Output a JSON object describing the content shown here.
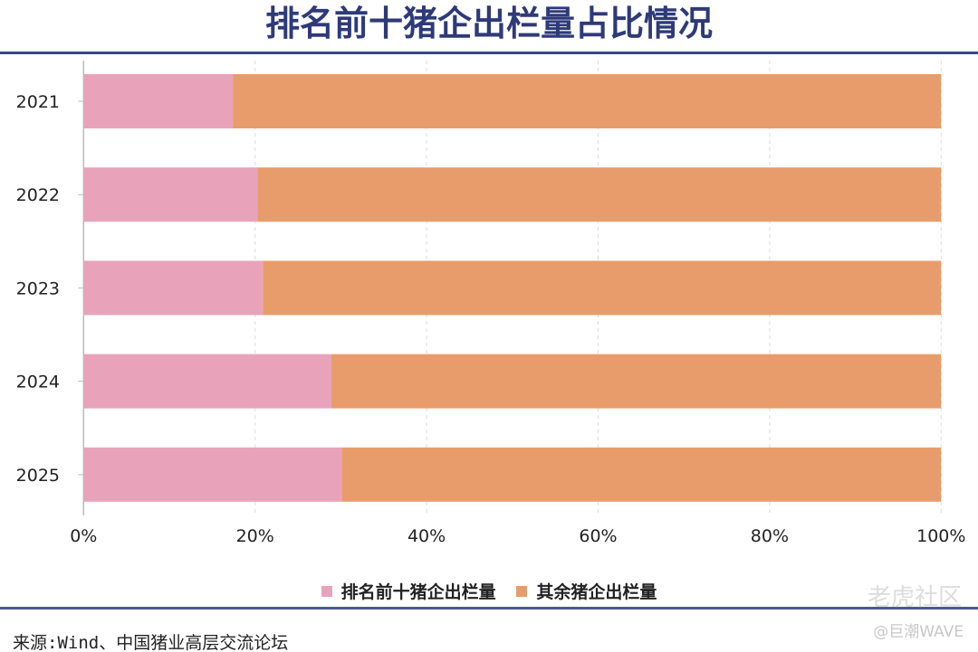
{
  "chart_data": {
    "type": "bar",
    "orientation": "horizontal",
    "stacked": true,
    "title": "排名前十猪企出栏量占比情况",
    "categories": [
      "2021",
      "2022",
      "2023",
      "2024",
      "2025"
    ],
    "series": [
      {
        "name": "排名前十猪企出栏量",
        "color": "#e8a3bb",
        "values": [
          17.4,
          20.3,
          20.9,
          28.9,
          30.1
        ]
      },
      {
        "name": "其余猪企出栏量",
        "color": "#e99c6b",
        "values": [
          82.6,
          79.7,
          79.1,
          71.1,
          69.9
        ]
      }
    ],
    "xlim": [
      0,
      100
    ],
    "xticks": [
      "0%",
      "20%",
      "40%",
      "60%",
      "80%",
      "100%"
    ],
    "grid": "vertical dashed",
    "legend": "bottom"
  },
  "footer": {
    "source": "来源:Wind、中国猪业高层交流论坛",
    "watermark": "老虎社区",
    "credit": "@巨潮WAVE"
  }
}
